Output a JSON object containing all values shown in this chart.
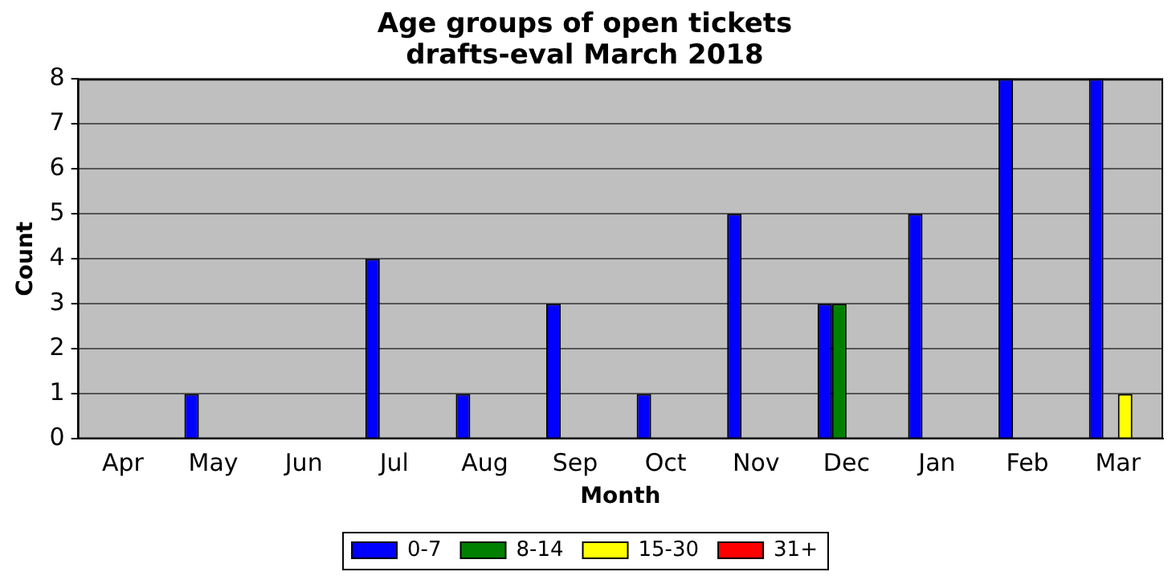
{
  "chart_data": {
    "type": "bar",
    "title": "Age groups of open tickets\ndrafts-eval March 2018",
    "xlabel": "Month",
    "ylabel": "Count",
    "categories": [
      "Apr",
      "May",
      "Jun",
      "Jul",
      "Aug",
      "Sep",
      "Oct",
      "Nov",
      "Dec",
      "Jan",
      "Feb",
      "Mar"
    ],
    "series": [
      {
        "name": "0-7",
        "color": "#0000ff",
        "values": [
          0,
          1,
          0,
          4,
          1,
          3,
          1,
          5,
          3,
          5,
          8,
          8
        ]
      },
      {
        "name": "8-14",
        "color": "#008000",
        "values": [
          0,
          0,
          0,
          0,
          0,
          0,
          0,
          0,
          3,
          0,
          0,
          0
        ]
      },
      {
        "name": "15-30",
        "color": "#ffff00",
        "values": [
          0,
          0,
          0,
          0,
          0,
          0,
          0,
          0,
          0,
          0,
          0,
          1
        ]
      },
      {
        "name": "31+",
        "color": "#ff0000",
        "values": [
          0,
          0,
          0,
          0,
          0,
          0,
          0,
          0,
          0,
          0,
          0,
          0
        ]
      }
    ],
    "ylim": [
      0,
      8
    ],
    "yticks": [
      0,
      1,
      2,
      3,
      4,
      5,
      6,
      7,
      8
    ],
    "grid": "y",
    "legend": "bottom"
  }
}
